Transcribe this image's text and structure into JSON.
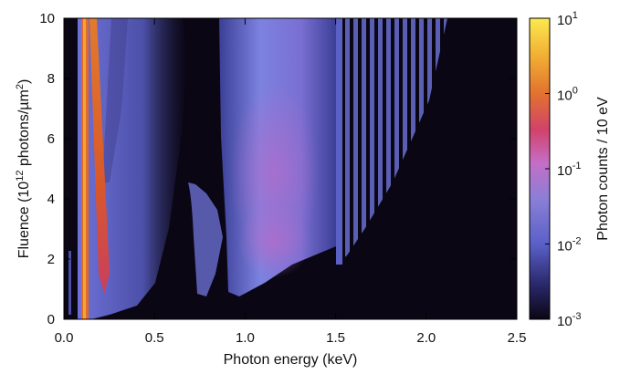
{
  "chart_data": {
    "type": "heatmap",
    "xlabel": "Photon energy (keV)",
    "ylabel": {
      "before": "Fluence (10",
      "exp1": "12",
      "middle": " photons/µm",
      "exp2": "2",
      "after": ")"
    },
    "xlim": [
      0.0,
      2.5
    ],
    "ylim": [
      0,
      10
    ],
    "x_ticks": [
      "0.0",
      "0.5",
      "1.0",
      "1.5",
      "2.0",
      "2.5"
    ],
    "y_ticks": [
      "0",
      "2",
      "4",
      "6",
      "8",
      "10"
    ],
    "colorbar": {
      "label": "Photon counts / 10 eV",
      "scale": "log",
      "range": [
        0.001,
        10
      ],
      "ticks": [
        {
          "base": "10",
          "exp": "1"
        },
        {
          "base": "10",
          "exp": "0"
        },
        {
          "base": "10",
          "exp": "-1"
        },
        {
          "base": "10",
          "exp": "-2"
        },
        {
          "base": "10",
          "exp": "-3"
        }
      ],
      "colors": [
        "#0a0614",
        "#2b2a6e",
        "#5a60c8",
        "#8a7fd6",
        "#c46ec6",
        "#d1426a",
        "#e2722f",
        "#f2b135",
        "#fce94f"
      ]
    },
    "features": [
      {
        "x_range": [
          0.08,
          0.11
        ],
        "y_range": [
          0,
          10
        ],
        "peak_counts": 5
      },
      {
        "x_range": [
          0.12,
          0.22
        ],
        "y_range": [
          0.8,
          10
        ],
        "peak_counts": 2
      },
      {
        "x_range": [
          0.05,
          0.6
        ],
        "y_range": [
          0,
          10
        ],
        "peak_counts": 0.02
      },
      {
        "x_range": [
          0.68,
          0.85
        ],
        "y_range": [
          0.8,
          4.2
        ],
        "peak_counts": 0.02
      },
      {
        "x_range": [
          0.85,
          1.5
        ],
        "y_range": [
          0.8,
          10
        ],
        "peak_counts": 0.05
      },
      {
        "x_range": [
          1.5,
          2.15
        ],
        "y_range": [
          1.8,
          10
        ],
        "peak_counts": 0.01
      }
    ]
  }
}
